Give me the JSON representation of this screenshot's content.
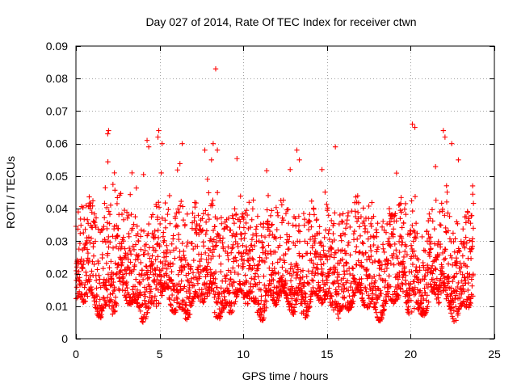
{
  "chart_data": {
    "type": "scatter",
    "title": "Day 027 of 2014, Rate Of TEC Index for receiver ctwn",
    "xlabel": "GPS time / hours",
    "ylabel": "ROTI / TECUs",
    "xlim": [
      0,
      25
    ],
    "ylim": [
      0,
      0.09
    ],
    "x_ticks": [
      0,
      5,
      10,
      15,
      20,
      25
    ],
    "y_ticks": [
      0,
      0.01,
      0.02,
      0.03,
      0.04,
      0.05,
      0.06,
      0.07,
      0.08,
      0.09
    ],
    "x_tick_labels": [
      "0",
      "5",
      "10",
      "15",
      "20",
      "25"
    ],
    "y_tick_labels": [
      "0",
      "0.01",
      "0.02",
      "0.03",
      "0.04",
      "0.05",
      "0.06",
      "0.07",
      "0.08",
      "0.09"
    ],
    "grid": true,
    "marker": "+",
    "series": [
      {
        "name": "ROTI",
        "color": "#ff0000",
        "data_range": {
          "x_start": 0,
          "x_end": 23.75,
          "typical_min": 0.004,
          "typical_max": 0.045
        },
        "notable_points": [
          {
            "x": 8.35,
            "y": 0.083
          },
          {
            "x": 1.95,
            "y": 0.064
          },
          {
            "x": 1.9,
            "y": 0.063
          },
          {
            "x": 4.95,
            "y": 0.064
          },
          {
            "x": 4.9,
            "y": 0.062
          },
          {
            "x": 4.25,
            "y": 0.061
          },
          {
            "x": 4.35,
            "y": 0.059
          },
          {
            "x": 5.15,
            "y": 0.06
          },
          {
            "x": 6.35,
            "y": 0.06
          },
          {
            "x": 7.7,
            "y": 0.058
          },
          {
            "x": 8.2,
            "y": 0.06
          },
          {
            "x": 8.45,
            "y": 0.058
          },
          {
            "x": 8.1,
            "y": 0.055
          },
          {
            "x": 13.2,
            "y": 0.058
          },
          {
            "x": 13.35,
            "y": 0.055
          },
          {
            "x": 15.5,
            "y": 0.059
          },
          {
            "x": 20.1,
            "y": 0.066
          },
          {
            "x": 20.25,
            "y": 0.065
          },
          {
            "x": 21.95,
            "y": 0.064
          },
          {
            "x": 22.05,
            "y": 0.062
          },
          {
            "x": 22.45,
            "y": 0.06
          },
          {
            "x": 22.85,
            "y": 0.055
          },
          {
            "x": 23.7,
            "y": 0.047
          },
          {
            "x": 12.8,
            "y": 0.052
          },
          {
            "x": 2.3,
            "y": 0.051
          },
          {
            "x": 3.35,
            "y": 0.051
          },
          {
            "x": 14.7,
            "y": 0.052
          }
        ]
      }
    ]
  }
}
